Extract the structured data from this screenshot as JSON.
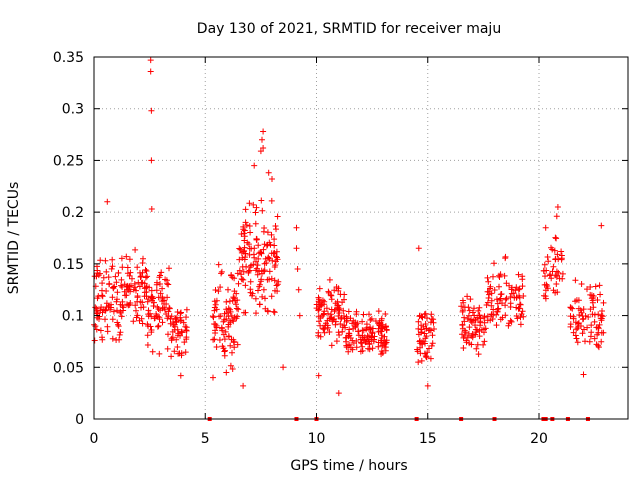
{
  "chart_data": {
    "type": "scatter",
    "title": "Day 130 of 2021, SRMTID for receiver maju",
    "xlabel": "GPS time / hours",
    "ylabel": "SRMTID / TECUs",
    "xlim": [
      0,
      24
    ],
    "ylim": [
      0,
      0.35
    ],
    "xticks": [
      0,
      5,
      10,
      15,
      20
    ],
    "xtick_labels": [
      "0",
      "5",
      "10",
      "15",
      "20"
    ],
    "yticks": [
      0,
      0.05,
      0.1,
      0.15,
      0.2,
      0.25,
      0.3,
      0.35
    ],
    "ytick_labels": [
      "0",
      "0.05",
      "0.1",
      "0.15",
      "0.2",
      "0.25",
      "0.3",
      "0.35"
    ],
    "grid": true,
    "marker": "+",
    "color": "#ff0000",
    "clusters": [
      {
        "x_range": [
          0.0,
          1.3
        ],
        "y_center": 0.115,
        "y_spread": 0.035,
        "count": 90
      },
      {
        "x_range": [
          1.3,
          2.4
        ],
        "y_center": 0.125,
        "y_spread": 0.03,
        "count": 70
      },
      {
        "x_range": [
          2.4,
          3.4
        ],
        "y_center": 0.11,
        "y_spread": 0.035,
        "count": 70
      },
      {
        "x_range": [
          3.4,
          4.2
        ],
        "y_center": 0.085,
        "y_spread": 0.025,
        "count": 50
      },
      {
        "x_range": [
          5.3,
          6.5
        ],
        "y_center": 0.1,
        "y_spread": 0.04,
        "count": 90
      },
      {
        "x_range": [
          6.5,
          8.3
        ],
        "y_center": 0.155,
        "y_spread": 0.045,
        "count": 140
      },
      {
        "x_range": [
          10.0,
          11.3
        ],
        "y_center": 0.1,
        "y_spread": 0.025,
        "count": 90
      },
      {
        "x_range": [
          11.3,
          13.2
        ],
        "y_center": 0.08,
        "y_spread": 0.02,
        "count": 130
      },
      {
        "x_range": [
          14.5,
          15.3
        ],
        "y_center": 0.08,
        "y_spread": 0.025,
        "count": 55
      },
      {
        "x_range": [
          16.5,
          17.6
        ],
        "y_center": 0.09,
        "y_spread": 0.025,
        "count": 70
      },
      {
        "x_range": [
          17.6,
          19.3
        ],
        "y_center": 0.115,
        "y_spread": 0.03,
        "count": 90
      },
      {
        "x_range": [
          20.2,
          21.1
        ],
        "y_center": 0.145,
        "y_spread": 0.025,
        "count": 45
      },
      {
        "x_range": [
          21.4,
          22.9
        ],
        "y_center": 0.1,
        "y_spread": 0.03,
        "count": 80
      }
    ],
    "outliers": [
      {
        "x": 2.55,
        "y": 0.347
      },
      {
        "x": 2.55,
        "y": 0.336
      },
      {
        "x": 2.58,
        "y": 0.298
      },
      {
        "x": 2.58,
        "y": 0.25
      },
      {
        "x": 2.6,
        "y": 0.203
      },
      {
        "x": 0.6,
        "y": 0.21
      },
      {
        "x": 7.6,
        "y": 0.278
      },
      {
        "x": 7.55,
        "y": 0.27
      },
      {
        "x": 7.6,
        "y": 0.262
      },
      {
        "x": 7.5,
        "y": 0.259
      },
      {
        "x": 7.2,
        "y": 0.245
      },
      {
        "x": 7.85,
        "y": 0.238
      },
      {
        "x": 8.0,
        "y": 0.232
      },
      {
        "x": 20.85,
        "y": 0.205
      },
      {
        "x": 20.8,
        "y": 0.196
      },
      {
        "x": 20.3,
        "y": 0.185
      },
      {
        "x": 9.1,
        "y": 0.185
      },
      {
        "x": 9.1,
        "y": 0.165
      },
      {
        "x": 9.15,
        "y": 0.145
      },
      {
        "x": 9.2,
        "y": 0.125
      },
      {
        "x": 9.25,
        "y": 0.1
      },
      {
        "x": 8.5,
        "y": 0.05
      },
      {
        "x": 10.1,
        "y": 0.042
      },
      {
        "x": 11.0,
        "y": 0.025
      },
      {
        "x": 14.6,
        "y": 0.165
      },
      {
        "x": 15.0,
        "y": 0.032
      },
      {
        "x": 6.7,
        "y": 0.032
      },
      {
        "x": 5.35,
        "y": 0.04
      },
      {
        "x": 22.8,
        "y": 0.187
      },
      {
        "x": 22.0,
        "y": 0.043
      },
      {
        "x": 3.9,
        "y": 0.042
      },
      {
        "x": 22.3,
        "y": 0.12
      }
    ],
    "zero_points_x": [
      5.2,
      9.1,
      10.0,
      14.5,
      16.5,
      18.0,
      20.2,
      20.3,
      20.6,
      21.3,
      22.2
    ]
  }
}
